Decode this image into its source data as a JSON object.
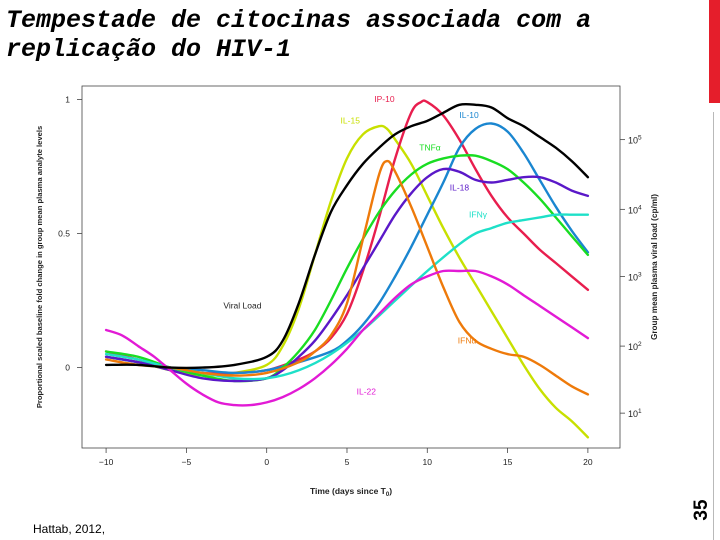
{
  "slide": {
    "title_line1": "Tempestade de citocinas associada com a",
    "title_line2": "replicação do HIV-1",
    "slide_number": "35",
    "citation": "Hattab, 2012,",
    "accent_color": "#e51e2b"
  },
  "chart_data": {
    "type": "line",
    "xlabel_main": "Time (days since T",
    "xlabel_sub": "0",
    "xlabel_end": ")",
    "ylabel": "Proportional scaled baseline fold change in group mean plasma analyte levels",
    "y2label": "Group mean plasma viral load (cp/ml)",
    "xlim": [
      -11.5,
      22
    ],
    "ylim": [
      -0.3,
      1.05
    ],
    "x_ticks": [
      -10,
      -5,
      0,
      5,
      10,
      15,
      20
    ],
    "x_tick_labels": [
      "−10",
      "−5",
      "0",
      "5",
      "10",
      "15",
      "20"
    ],
    "y_ticks": [
      0,
      0.5,
      1
    ],
    "y_tick_labels": [
      "0",
      "0.5",
      "1"
    ],
    "y2_ticks": [
      {
        "base": "10",
        "exp": "1",
        "at": -0.17
      },
      {
        "base": "10",
        "exp": "2",
        "at": 0.08
      },
      {
        "base": "10",
        "exp": "3",
        "at": 0.34
      },
      {
        "base": "10",
        "exp": "4",
        "at": 0.59
      },
      {
        "base": "10",
        "exp": "5",
        "at": 0.85
      }
    ],
    "series": [
      {
        "name": "Viral Load",
        "color": "#000000",
        "label_at": [
          -2.7,
          0.22
        ],
        "points": [
          [
            -10,
            0.01
          ],
          [
            -8,
            0.01
          ],
          [
            -6,
            0
          ],
          [
            -4,
            0
          ],
          [
            -2,
            0.01
          ],
          [
            0,
            0.04
          ],
          [
            1,
            0.1
          ],
          [
            2,
            0.24
          ],
          [
            3,
            0.42
          ],
          [
            4,
            0.58
          ],
          [
            5,
            0.68
          ],
          [
            6,
            0.76
          ],
          [
            7,
            0.82
          ],
          [
            8,
            0.87
          ],
          [
            9,
            0.9
          ],
          [
            10,
            0.92
          ],
          [
            11,
            0.95
          ],
          [
            12,
            0.98
          ],
          [
            13,
            0.98
          ],
          [
            14,
            0.97
          ],
          [
            15,
            0.93
          ],
          [
            16,
            0.9
          ],
          [
            17,
            0.86
          ],
          [
            18,
            0.82
          ],
          [
            19,
            0.77
          ],
          [
            20,
            0.71
          ]
        ]
      },
      {
        "name": "IL-15",
        "color": "#c8e000",
        "label_at": [
          4.6,
          0.91
        ],
        "points": [
          [
            -10,
            0.04
          ],
          [
            -8,
            0.02
          ],
          [
            -6,
            -0.01
          ],
          [
            -4,
            -0.03
          ],
          [
            -2,
            -0.02
          ],
          [
            0,
            0.01
          ],
          [
            1,
            0.08
          ],
          [
            2,
            0.22
          ],
          [
            3,
            0.42
          ],
          [
            4,
            0.62
          ],
          [
            5,
            0.78
          ],
          [
            6,
            0.87
          ],
          [
            7,
            0.9
          ],
          [
            7.5,
            0.89
          ],
          [
            8,
            0.85
          ],
          [
            9,
            0.76
          ],
          [
            10,
            0.64
          ],
          [
            11,
            0.52
          ],
          [
            12,
            0.41
          ],
          [
            13,
            0.31
          ],
          [
            14,
            0.21
          ],
          [
            15,
            0.11
          ],
          [
            16,
            0.01
          ],
          [
            17,
            -0.08
          ],
          [
            18,
            -0.15
          ],
          [
            19,
            -0.2
          ],
          [
            20,
            -0.26
          ]
        ]
      },
      {
        "name": "IP-10",
        "color": "#e81e4e",
        "label_at": [
          6.7,
          0.99
        ],
        "points": [
          [
            -10,
            0.06
          ],
          [
            -8,
            0.03
          ],
          [
            -6,
            0
          ],
          [
            -4,
            -0.02
          ],
          [
            -2,
            -0.02
          ],
          [
            0,
            -0.01
          ],
          [
            2,
            0.03
          ],
          [
            3,
            0.06
          ],
          [
            4,
            0.11
          ],
          [
            5,
            0.2
          ],
          [
            6,
            0.36
          ],
          [
            7,
            0.56
          ],
          [
            8,
            0.78
          ],
          [
            9,
            0.95
          ],
          [
            9.6,
            0.99
          ],
          [
            10,
            0.99
          ],
          [
            11,
            0.94
          ],
          [
            12,
            0.85
          ],
          [
            13,
            0.74
          ],
          [
            14,
            0.64
          ],
          [
            15,
            0.56
          ],
          [
            16,
            0.5
          ],
          [
            17,
            0.44
          ],
          [
            18,
            0.39
          ],
          [
            19,
            0.34
          ],
          [
            20,
            0.29
          ]
        ]
      },
      {
        "name": "IL-10",
        "color": "#1a86d0",
        "label_at": [
          12,
          0.93
        ],
        "points": [
          [
            -10,
            0.04
          ],
          [
            -8,
            0.02
          ],
          [
            -6,
            0
          ],
          [
            -4,
            -0.01
          ],
          [
            -2,
            -0.02
          ],
          [
            0,
            -0.01
          ],
          [
            2,
            0.02
          ],
          [
            4,
            0.06
          ],
          [
            5,
            0.1
          ],
          [
            6,
            0.16
          ],
          [
            7,
            0.24
          ],
          [
            8,
            0.34
          ],
          [
            9,
            0.45
          ],
          [
            10,
            0.57
          ],
          [
            11,
            0.69
          ],
          [
            12,
            0.82
          ],
          [
            13,
            0.89
          ],
          [
            14,
            0.91
          ],
          [
            15,
            0.88
          ],
          [
            16,
            0.8
          ],
          [
            17,
            0.7
          ],
          [
            18,
            0.6
          ],
          [
            19,
            0.51
          ],
          [
            20,
            0.43
          ]
        ]
      },
      {
        "name": "TNFα",
        "color": "#19dd22",
        "label_at": [
          9.5,
          0.81
        ],
        "points": [
          [
            -10,
            0.06
          ],
          [
            -8,
            0.04
          ],
          [
            -6,
            0
          ],
          [
            -4,
            -0.03
          ],
          [
            -2,
            -0.05
          ],
          [
            0,
            -0.04
          ],
          [
            1,
            0
          ],
          [
            2,
            0.06
          ],
          [
            3,
            0.14
          ],
          [
            4,
            0.25
          ],
          [
            5,
            0.37
          ],
          [
            6,
            0.48
          ],
          [
            7,
            0.58
          ],
          [
            8,
            0.66
          ],
          [
            9,
            0.72
          ],
          [
            10,
            0.76
          ],
          [
            11,
            0.78
          ],
          [
            12,
            0.79
          ],
          [
            13,
            0.79
          ],
          [
            14,
            0.77
          ],
          [
            15,
            0.74
          ],
          [
            16,
            0.69
          ],
          [
            17,
            0.63
          ],
          [
            18,
            0.56
          ],
          [
            19,
            0.49
          ],
          [
            20,
            0.42
          ]
        ]
      },
      {
        "name": "IL-18",
        "color": "#5a18c8",
        "label_at": [
          11.4,
          0.66
        ],
        "points": [
          [
            -10,
            0.04
          ],
          [
            -8,
            0.02
          ],
          [
            -6,
            -0.01
          ],
          [
            -4,
            -0.04
          ],
          [
            -2,
            -0.05
          ],
          [
            0,
            -0.04
          ],
          [
            1,
            -0.01
          ],
          [
            2,
            0.04
          ],
          [
            3,
            0.1
          ],
          [
            4,
            0.18
          ],
          [
            5,
            0.27
          ],
          [
            6,
            0.37
          ],
          [
            7,
            0.47
          ],
          [
            8,
            0.57
          ],
          [
            9,
            0.65
          ],
          [
            10,
            0.71
          ],
          [
            11,
            0.74
          ],
          [
            12,
            0.73
          ],
          [
            13,
            0.7
          ],
          [
            14,
            0.69
          ],
          [
            15,
            0.7
          ],
          [
            16,
            0.71
          ],
          [
            17,
            0.71
          ],
          [
            18,
            0.69
          ],
          [
            19,
            0.66
          ],
          [
            20,
            0.64
          ]
        ]
      },
      {
        "name": "IFNγ",
        "color": "#1ee0c8",
        "label_at": [
          12.6,
          0.56
        ],
        "points": [
          [
            -10,
            0.05
          ],
          [
            -8,
            0.03
          ],
          [
            -6,
            0
          ],
          [
            -4,
            -0.02
          ],
          [
            -2,
            -0.04
          ],
          [
            0,
            -0.04
          ],
          [
            2,
            -0.01
          ],
          [
            4,
            0.05
          ],
          [
            6,
            0.14
          ],
          [
            8,
            0.25
          ],
          [
            10,
            0.36
          ],
          [
            12,
            0.46
          ],
          [
            13,
            0.5
          ],
          [
            14,
            0.52
          ],
          [
            15,
            0.54
          ],
          [
            16,
            0.55
          ],
          [
            17,
            0.56
          ],
          [
            18,
            0.57
          ],
          [
            19,
            0.57
          ],
          [
            20,
            0.57
          ]
        ]
      },
      {
        "name": "IFNα",
        "color": "#ee7a0a",
        "label_at": [
          11.9,
          0.09
        ],
        "points": [
          [
            -10,
            0.03
          ],
          [
            -8,
            0.01
          ],
          [
            -6,
            0
          ],
          [
            -4,
            -0.02
          ],
          [
            -2,
            -0.03
          ],
          [
            0,
            -0.02
          ],
          [
            2,
            0.02
          ],
          [
            3,
            0.06
          ],
          [
            4,
            0.12
          ],
          [
            5,
            0.24
          ],
          [
            6,
            0.48
          ],
          [
            7,
            0.72
          ],
          [
            7.5,
            0.77
          ],
          [
            8,
            0.73
          ],
          [
            9,
            0.6
          ],
          [
            10,
            0.45
          ],
          [
            11,
            0.3
          ],
          [
            12,
            0.17
          ],
          [
            13,
            0.1
          ],
          [
            14,
            0.07
          ],
          [
            15,
            0.05
          ],
          [
            16,
            0.04
          ],
          [
            17,
            0.01
          ],
          [
            18,
            -0.03
          ],
          [
            19,
            -0.07
          ],
          [
            20,
            -0.1
          ]
        ]
      },
      {
        "name": "IL-22",
        "color": "#e21ad5",
        "label_at": [
          5.6,
          -0.1
        ],
        "points": [
          [
            -10,
            0.14
          ],
          [
            -9,
            0.12
          ],
          [
            -8,
            0.08
          ],
          [
            -7,
            0.04
          ],
          [
            -6,
            -0.01
          ],
          [
            -5,
            -0.06
          ],
          [
            -4,
            -0.1
          ],
          [
            -3,
            -0.13
          ],
          [
            -2,
            -0.14
          ],
          [
            -1,
            -0.14
          ],
          [
            0,
            -0.13
          ],
          [
            1,
            -0.11
          ],
          [
            2,
            -0.08
          ],
          [
            3,
            -0.04
          ],
          [
            4,
            0.01
          ],
          [
            5,
            0.07
          ],
          [
            6,
            0.14
          ],
          [
            7,
            0.2
          ],
          [
            8,
            0.26
          ],
          [
            9,
            0.31
          ],
          [
            10,
            0.34
          ],
          [
            11,
            0.36
          ],
          [
            12,
            0.36
          ],
          [
            13,
            0.36
          ],
          [
            14,
            0.34
          ],
          [
            15,
            0.31
          ],
          [
            16,
            0.27
          ],
          [
            17,
            0.23
          ],
          [
            18,
            0.19
          ],
          [
            19,
            0.15
          ],
          [
            20,
            0.11
          ]
        ]
      }
    ]
  }
}
